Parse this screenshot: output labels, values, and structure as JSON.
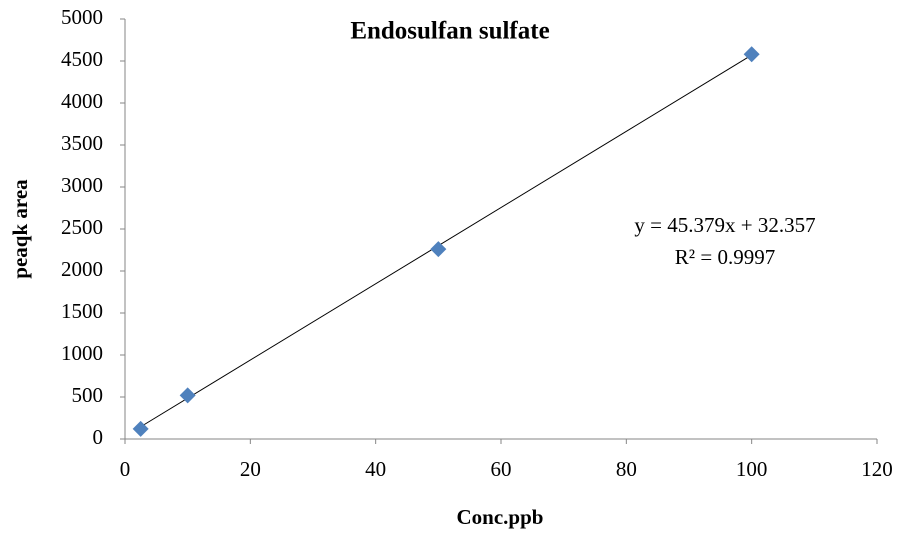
{
  "chart_data": {
    "type": "scatter",
    "title": "Endosulfan sulfate",
    "x_label": "Conc.ppb",
    "y_label": "peaqk area",
    "series": [
      {
        "name": "peaqk area",
        "color": "#4f81bd",
        "x": [
          2.5,
          10,
          50,
          100
        ],
        "values": [
          120,
          520,
          2260,
          4580
        ]
      }
    ],
    "trendline": {
      "slope": 45.379,
      "intercept": 32.357,
      "color": "#000000",
      "equation": "y = 45.379x + 32.357",
      "r2": "R² = 0.9997"
    },
    "xlim": [
      0,
      120
    ],
    "xticks": [
      0,
      20,
      40,
      60,
      80,
      100,
      120
    ],
    "ylim": [
      0,
      5000
    ],
    "yticks": [
      0,
      500,
      1000,
      1500,
      2000,
      2500,
      3000,
      3500,
      4000,
      4500,
      5000
    ],
    "grid": false,
    "legend": false
  }
}
